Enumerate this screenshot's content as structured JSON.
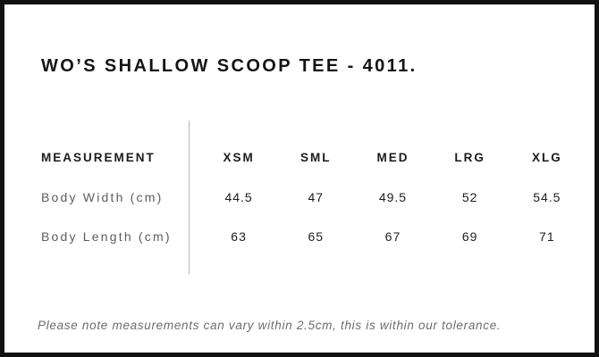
{
  "chart_data": {
    "type": "table",
    "title": "WO’S SHALLOW SCOOP TEE - 4011.",
    "columns": [
      "MEASUREMENT",
      "XSM",
      "SML",
      "MED",
      "LRG",
      "XLG"
    ],
    "rows": [
      {
        "label": "Body Width (cm)",
        "values": [
          "44.5",
          "47",
          "49.5",
          "52",
          "54.5"
        ]
      },
      {
        "label": "Body Length (cm)",
        "values": [
          "63",
          "65",
          "67",
          "69",
          "71"
        ]
      }
    ],
    "layout_hints": {
      "label_column_divider": true,
      "grid": "off",
      "header_position": "top"
    }
  },
  "footer": {
    "tolerance_note": "Please note measurements can vary within 2.5cm, this is within our tolerance."
  },
  "colors": {
    "background": "#ffffff",
    "page_border": "#111111",
    "title_text": "#141414",
    "header_text": "#1b1b1b",
    "value_text": "#1d1d1d",
    "row_label_text": "#5d5d5f",
    "note_text": "#6c6c6c",
    "divider": "#b6b6b6"
  }
}
